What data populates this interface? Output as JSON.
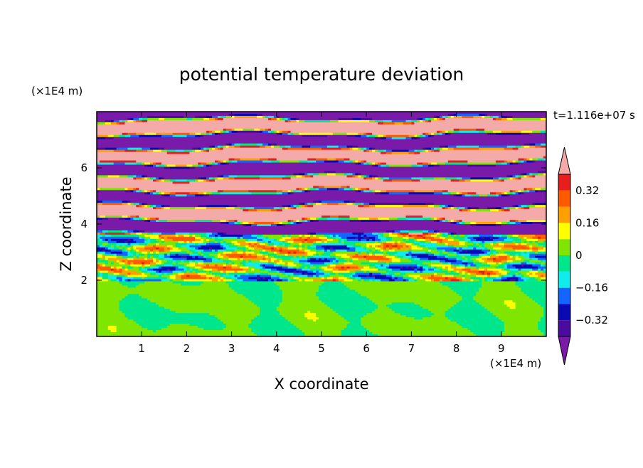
{
  "chart_data": {
    "type": "heatmap",
    "title": "potential temperature deviation",
    "time_label": "t=1.116e+07 s",
    "xlabel": "X coordinate",
    "ylabel": "Z coordinate",
    "x_unit": "(×1E4 m)",
    "y_unit": "(×1E4 m)",
    "xlim": [
      0,
      10
    ],
    "ylim": [
      0,
      8
    ],
    "x_ticks": [
      1,
      2,
      3,
      4,
      5,
      6,
      7,
      8,
      9
    ],
    "y_ticks": [
      2,
      4,
      6
    ],
    "colorbar": {
      "levels": [
        -0.4,
        -0.32,
        -0.24,
        -0.16,
        -0.08,
        0,
        0.08,
        0.16,
        0.24,
        0.32,
        0.4
      ],
      "colors": [
        "#4b0aa0",
        "#0a0ab4",
        "#1464ff",
        "#10ecec",
        "#00e68c",
        "#7ee600",
        "#ffff00",
        "#ffa000",
        "#ff5a00",
        "#e61e1e"
      ],
      "under_color": "#7a1aa8",
      "over_color": "#f5aaaa",
      "labels": [
        "-0.32",
        "-0.16",
        "0",
        "0.16",
        "0.32"
      ],
      "label_values": [
        -0.32,
        -0.16,
        0,
        0.16,
        0.32
      ],
      "extend": "both"
    }
  }
}
